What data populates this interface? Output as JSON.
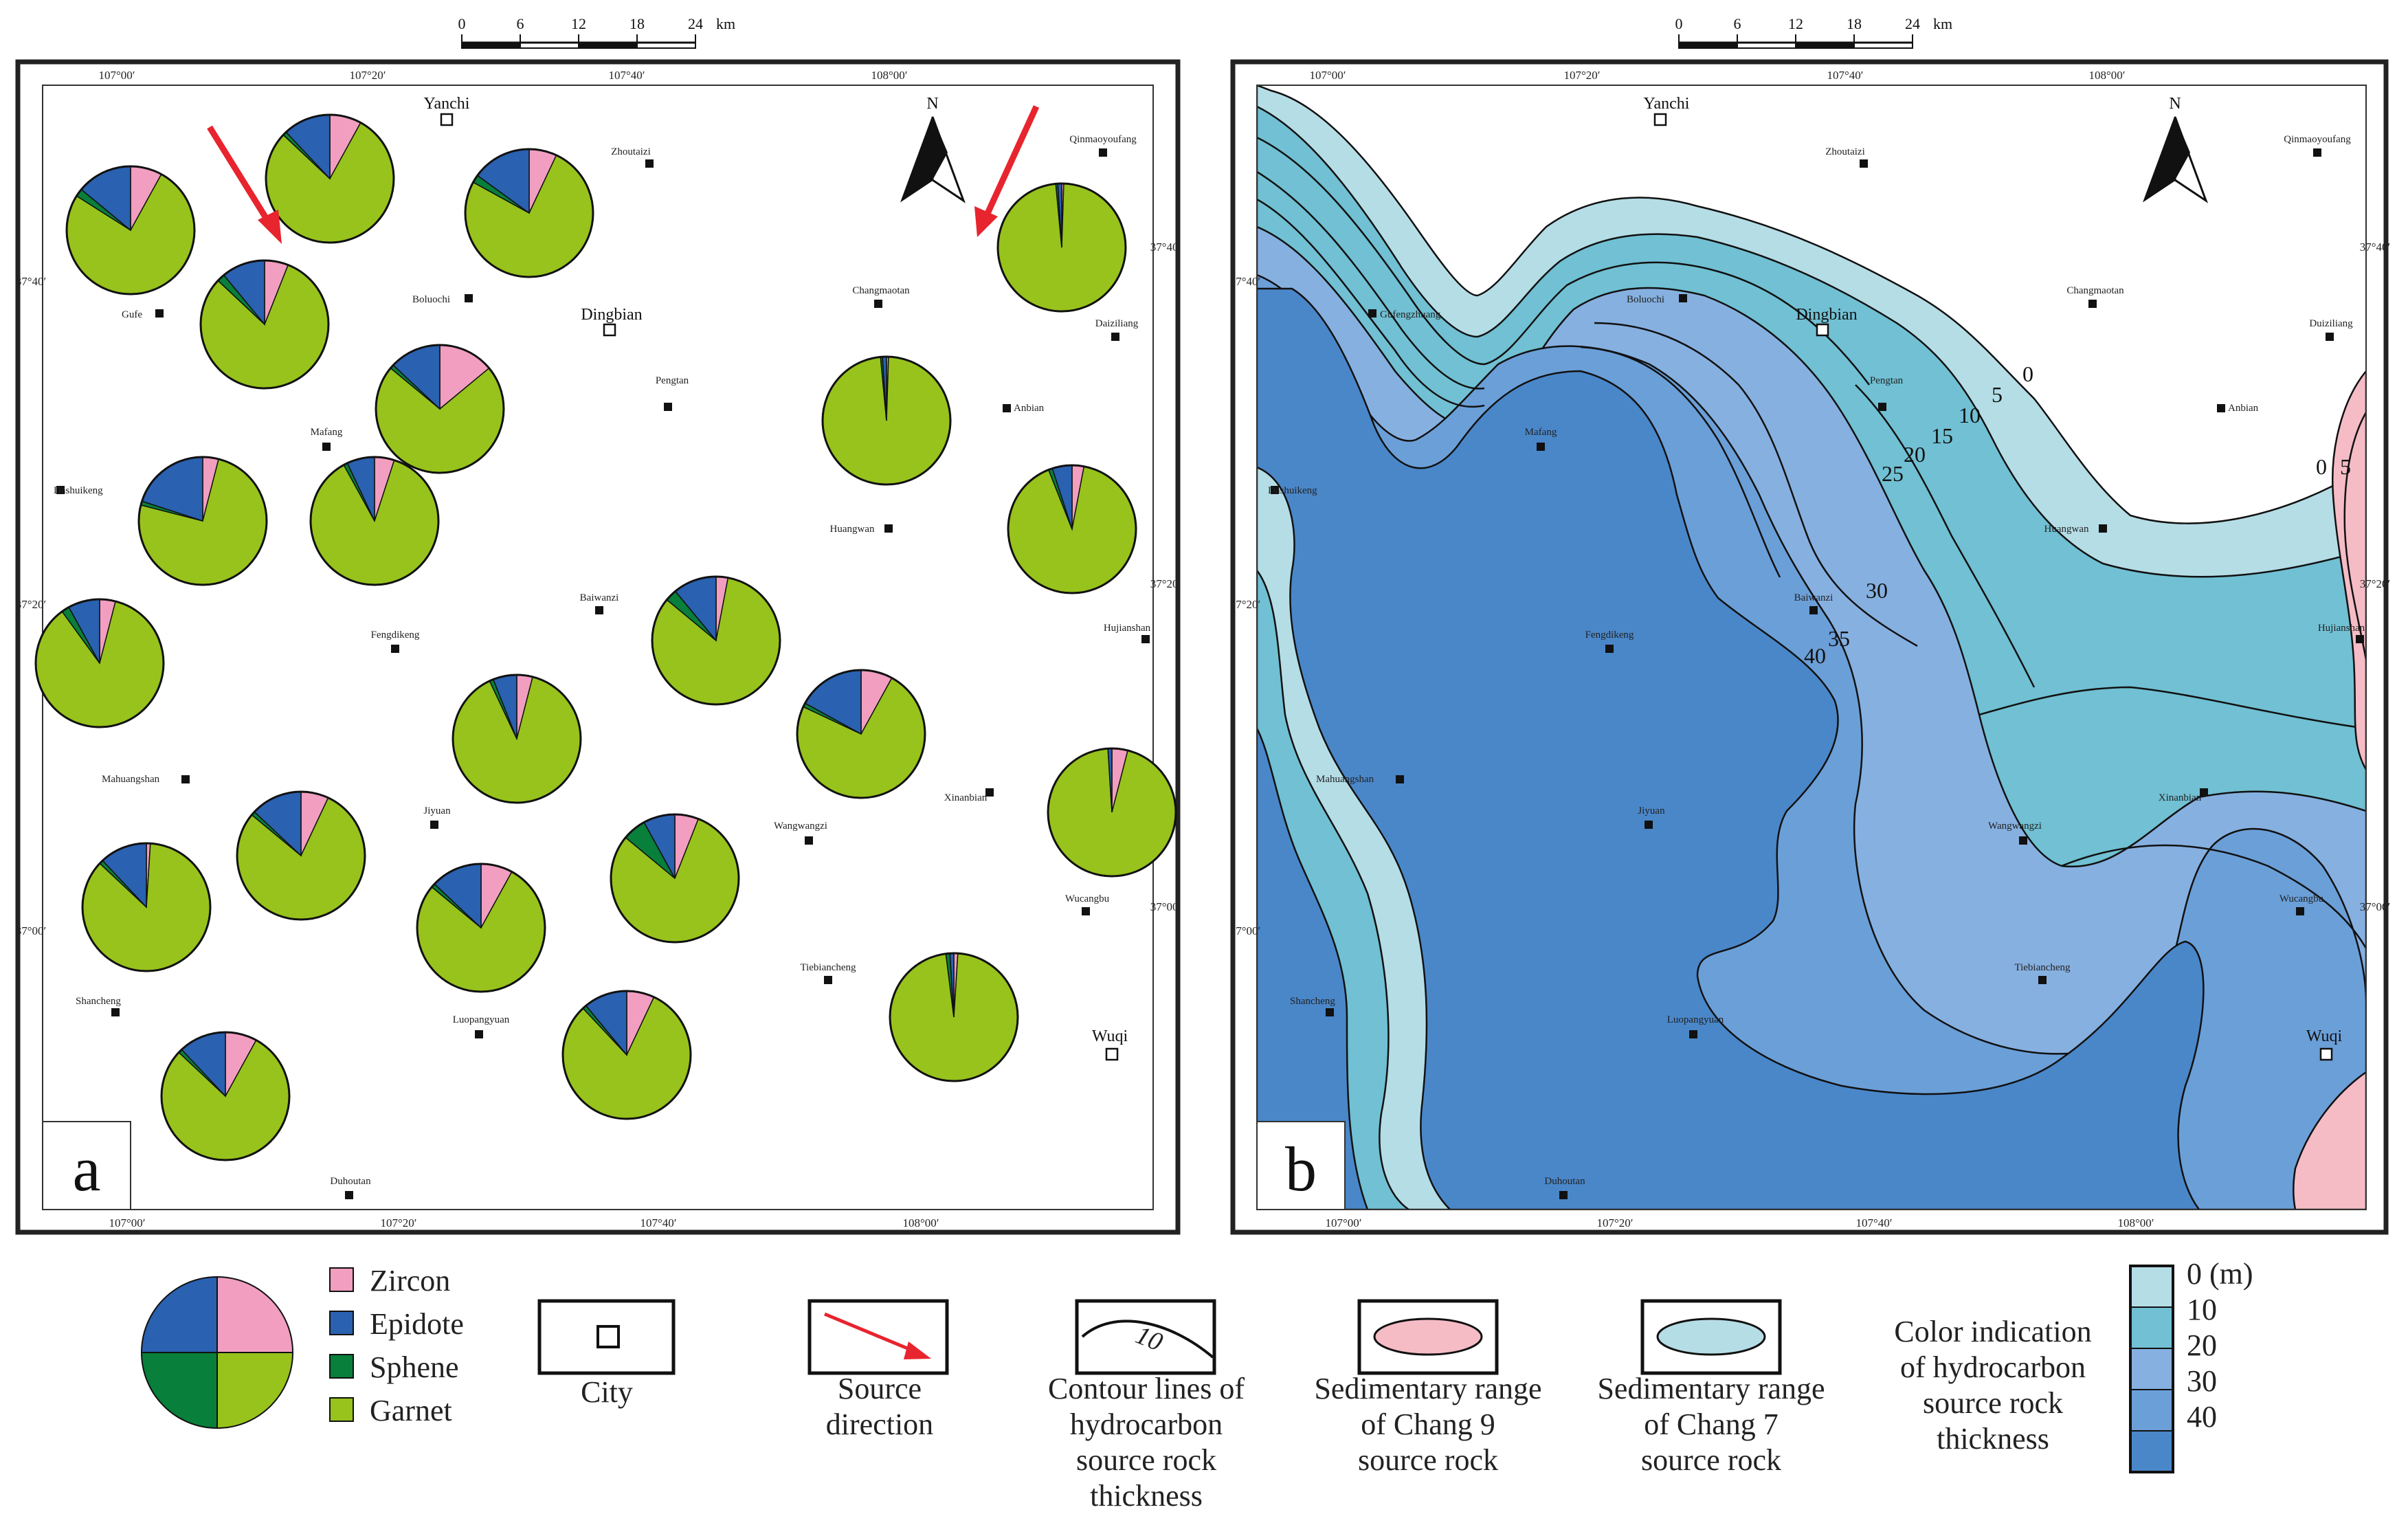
{
  "scale_bar": {
    "ticks": [
      "0",
      "6",
      "12",
      "18",
      "24"
    ],
    "unit": "km"
  },
  "coords": {
    "top": [
      "107°00′",
      "107°20′",
      "107°40′",
      "108°00′"
    ],
    "bottom": [
      "107°00′",
      "107°20′",
      "107°40′",
      "108°00′"
    ],
    "lat": [
      "37°40′",
      "37°20′",
      "37°00′"
    ]
  },
  "cities": [
    {
      "name": "Yanchi",
      "key": "yanchi"
    },
    {
      "name": "Dingbian",
      "key": "dingbian"
    },
    {
      "name": "Wuqi",
      "key": "wuqi"
    }
  ],
  "towns_a": [
    "Zhoutaizi",
    "Qinmaoyoufang",
    "Gufe",
    "Boluochi",
    "Changmaotan",
    "Daiziliang",
    "Pengtan",
    "Anbian",
    "Mafang",
    "Dashuikeng",
    "Huangwan",
    "Baiwanzi",
    "Fengdikeng",
    "Hujianshan",
    "Mahuangshan",
    "Xinanbian",
    "Jiyuan",
    "Wangwangzi",
    "Wucangbu",
    "Shancheng",
    "Tiebiancheng",
    "Luopangyuan",
    "Duhoutan"
  ],
  "towns_b": [
    "Zhoutaizi",
    "Qinmaoyoufang",
    "Gufengzhuang",
    "Boluochi",
    "Changmaotan",
    "Duiziliang",
    "Pengtan",
    "Anbian",
    "Mafang",
    "Dashuikeng",
    "Huangwan",
    "Baiwanzi",
    "Fengdikeng",
    "Hujianshan",
    "Mahuangshan",
    "Xinanbian",
    "Jiyuan",
    "Wangwangzi",
    "Wucangbu",
    "Shancheng",
    "Tiebiancheng",
    "Luopangyuan",
    "Duhoutan"
  ],
  "north_label": "N",
  "panels": {
    "a": "a",
    "b": "b"
  },
  "heavy_minerals": [
    {
      "zircon": 0.08,
      "epidote": 0.14,
      "sphene": 0.02,
      "garnet": 0.76
    },
    {
      "zircon": 0.06,
      "epidote": 0.11,
      "sphene": 0.02,
      "garnet": 0.81
    },
    {
      "zircon": 0.08,
      "epidote": 0.12,
      "sphene": 0.01,
      "garnet": 0.79
    },
    {
      "zircon": 0.07,
      "epidote": 0.15,
      "sphene": 0.02,
      "garnet": 0.76
    },
    {
      "zircon": 0.005,
      "epidote": 0.01,
      "sphene": 0.005,
      "garnet": 0.98
    },
    {
      "zircon": 0.14,
      "epidote": 0.13,
      "sphene": 0.01,
      "garnet": 0.72
    },
    {
      "zircon": 0.005,
      "epidote": 0.01,
      "sphene": 0.005,
      "garnet": 0.98
    },
    {
      "zircon": 0.04,
      "epidote": 0.2,
      "sphene": 0.01,
      "garnet": 0.75
    },
    {
      "zircon": 0.05,
      "epidote": 0.07,
      "sphene": 0.01,
      "garnet": 0.87
    },
    {
      "zircon": 0.03,
      "epidote": 0.05,
      "sphene": 0.01,
      "garnet": 0.91
    },
    {
      "zircon": 0.03,
      "epidote": 0.11,
      "sphene": 0.03,
      "garnet": 0.83
    },
    {
      "zircon": 0.04,
      "epidote": 0.08,
      "sphene": 0.02,
      "garnet": 0.86
    },
    {
      "zircon": 0.08,
      "epidote": 0.17,
      "sphene": 0.01,
      "garnet": 0.74
    },
    {
      "zircon": 0.04,
      "epidote": 0.06,
      "sphene": 0.01,
      "garnet": 0.89
    },
    {
      "zircon": 0.04,
      "epidote": 0.01,
      "sphene": 0.0,
      "garnet": 0.95
    },
    {
      "zircon": 0.07,
      "epidote": 0.13,
      "sphene": 0.01,
      "garnet": 0.79
    },
    {
      "zircon": 0.01,
      "epidote": 0.12,
      "sphene": 0.01,
      "garnet": 0.86
    },
    {
      "zircon": 0.06,
      "epidote": 0.08,
      "sphene": 0.06,
      "garnet": 0.8
    },
    {
      "zircon": 0.08,
      "epidote": 0.13,
      "sphene": 0.01,
      "garnet": 0.78
    },
    {
      "zircon": 0.07,
      "epidote": 0.11,
      "sphene": 0.01,
      "garnet": 0.81
    },
    {
      "zircon": 0.01,
      "epidote": 0.01,
      "sphene": 0.01,
      "garnet": 0.97
    },
    {
      "zircon": 0.08,
      "epidote": 0.12,
      "sphene": 0.01,
      "garnet": 0.79
    }
  ],
  "contour_labels": [
    "0",
    "5",
    "10",
    "15",
    "20",
    "25",
    "30",
    "35",
    "40"
  ],
  "contour_labels_east": [
    "0",
    "5"
  ],
  "legend": {
    "minerals": [
      {
        "label": "Zircon",
        "color": "#f29ec0"
      },
      {
        "label": "Epidote",
        "color": "#2a61b0"
      },
      {
        "label": "Sphene",
        "color": "#087f3a"
      },
      {
        "label": "Garnet",
        "color": "#97c31c"
      }
    ],
    "city": "City",
    "source_direction": [
      "Source",
      "direction"
    ],
    "contour_sample": "10",
    "contour_lines": [
      "Contour lines of",
      "hydrocarbon",
      "source rock",
      "thickness"
    ],
    "chang9": [
      "Sedimentary range",
      "of Chang 9",
      "source rock"
    ],
    "chang7": [
      "Sedimentary range",
      "of Chang 7",
      "source rock"
    ],
    "color_title": [
      "Color indication",
      "of hydrocarbon",
      "source rock",
      "thickness"
    ],
    "color_ramp": [
      {
        "label": "0 (m)",
        "color": "#b5dde6"
      },
      {
        "label": "10",
        "color": "#71c0d3"
      },
      {
        "label": "20",
        "color": "#86b0e0"
      },
      {
        "label": "30",
        "color": "#6b9fd8"
      },
      {
        "label": "40",
        "color": "#4a87c9"
      }
    ]
  },
  "colors": {
    "zircon": "#f29ec0",
    "epidote": "#2a61b0",
    "sphene": "#087f3a",
    "garnet": "#97c31c",
    "arrow": "#e8242e",
    "chang9_fill": "#f5bcc6",
    "chang7_fill": "#b5dde6"
  }
}
